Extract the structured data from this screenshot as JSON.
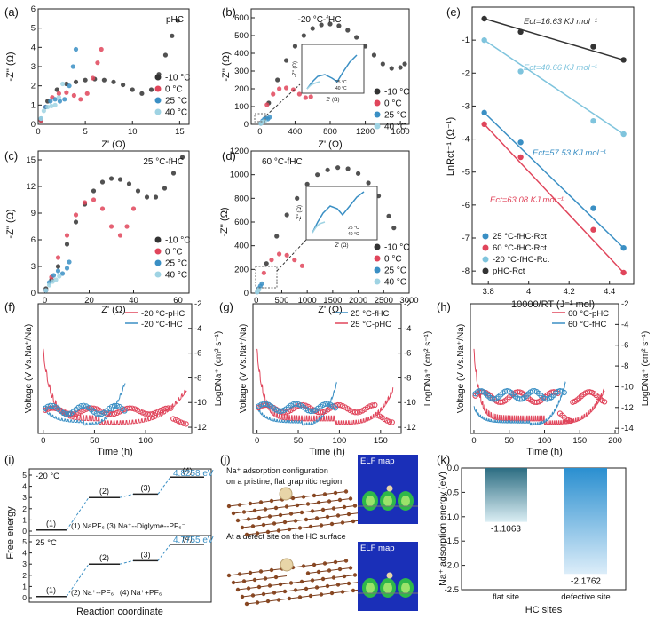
{
  "colors": {
    "black": "#333333",
    "red": "#e0455b",
    "blue": "#3a8fc4",
    "lightblue": "#9fd3e3",
    "cyan": "#7fc4dd",
    "pink": "#e86b82"
  },
  "panels": {
    "a": {
      "letter": "(a)",
      "tag": "pHC",
      "xlabel": "Z' (Ω)",
      "ylabel": "-Z'' (Ω)"
    },
    "b": {
      "letter": "(b)",
      "tag": "-20 °C-fHC",
      "xlabel": "Z' (Ω)",
      "ylabel": "-Z'' (Ω)",
      "inset_xlabel": "Z' (Ω)",
      "inset_ylabel": "-Z'' (Ω)"
    },
    "c": {
      "letter": "(c)",
      "tag": "25 °C-fHC",
      "xlabel": "Z' (Ω)",
      "ylabel": "-Z'' (Ω)"
    },
    "d": {
      "letter": "(d)",
      "tag": "60 °C-fHC",
      "xlabel": "Z' (Ω)",
      "ylabel": "-Z'' (Ω)",
      "inset_xlabel": "Z' (Ω)",
      "inset_ylabel": "-Z'' (Ω)"
    },
    "e": {
      "letter": "(e)",
      "xlabel": "10000/RT (J⁻¹ mol)",
      "ylabel": "LnRct⁻¹ (Ω⁻¹)"
    },
    "f": {
      "letter": "(f)",
      "xlabel": "Time (h)",
      "ylabel": "Voltage (V Vs.Na⁺/Na)",
      "y2label": "LogDNa⁺ (cm² s⁻¹)"
    },
    "g": {
      "letter": "(g)",
      "xlabel": "Time (h)",
      "ylabel": "Voltage (V Vs.Na⁺/Na)",
      "y2label": "LogDNa⁺ (cm² s⁻¹)"
    },
    "h": {
      "letter": "(h)",
      "xlabel": "Time (h)",
      "ylabel": "Voltage (V Vs.Na⁺/Na)",
      "y2label": "LogDNa⁺ (cm² s⁻¹)"
    },
    "i": {
      "letter": "(i)"
    },
    "j": {
      "letter": "(j)"
    },
    "k": {
      "letter": "(k)"
    }
  },
  "legend_temps": [
    "-10 °C",
    "0 °C",
    "25 °C",
    "40 °C"
  ],
  "chart_data": [
    {
      "panel": "a",
      "type": "scatter",
      "xlim": [
        0,
        16
      ],
      "ylim": [
        0,
        6
      ],
      "xticks": [
        0,
        5,
        10,
        15
      ],
      "yticks": [
        0,
        1,
        2,
        3,
        4,
        5,
        6
      ],
      "series": [
        {
          "name": "-10 °C",
          "color": "#333333",
          "x": [
            0.3,
            1,
            2,
            3,
            4,
            5,
            6,
            7,
            8,
            9,
            10,
            11,
            12,
            12.8,
            13.5,
            14.2,
            14.8
          ],
          "y": [
            0.2,
            1.2,
            1.8,
            2.1,
            2.2,
            2.3,
            2.35,
            2.3,
            2.2,
            2.05,
            1.8,
            1.6,
            1.8,
            2.6,
            3.6,
            4.6,
            5.4
          ]
        },
        {
          "name": "0 °C",
          "color": "#e0455b",
          "x": [
            0.3,
            0.8,
            1.5,
            2.2,
            3,
            3.8,
            4.5,
            5.2,
            5.8,
            6.3,
            6.7
          ],
          "y": [
            0.2,
            0.9,
            1.4,
            1.6,
            1.65,
            1.5,
            1.3,
            1.6,
            2.4,
            3.2,
            3.9
          ]
        },
        {
          "name": "25 °C",
          "color": "#3a8fc4",
          "x": [
            0.3,
            0.8,
            1.3,
            1.8,
            2.3,
            2.8,
            3.3,
            3.7,
            4.0
          ],
          "y": [
            0.3,
            0.9,
            1.2,
            1.3,
            1.2,
            1.3,
            2.0,
            3.0,
            3.9
          ]
        },
        {
          "name": "40 °C",
          "color": "#9fd3e3",
          "x": [
            0.3,
            0.6,
            1,
            1.4,
            1.8,
            2.2,
            2.6
          ],
          "y": [
            0.3,
            0.7,
            0.9,
            0.95,
            1.0,
            1.4,
            2.1
          ]
        }
      ]
    },
    {
      "panel": "b",
      "type": "scatter",
      "xlim": [
        -100,
        1700
      ],
      "ylim": [
        0,
        650
      ],
      "xticks": [
        0,
        400,
        800,
        1200,
        1600
      ],
      "yticks": [
        0,
        100,
        200,
        300,
        400,
        500,
        600
      ],
      "series": [
        {
          "name": "-10 °C",
          "color": "#333333",
          "x": [
            20,
            100,
            200,
            300,
            400,
            500,
            600,
            700,
            800,
            900,
            1000,
            1100,
            1200,
            1300,
            1400,
            1500,
            1600,
            1650
          ],
          "y": [
            10,
            120,
            250,
            360,
            440,
            500,
            540,
            560,
            565,
            555,
            530,
            490,
            440,
            390,
            340,
            315,
            320,
            340
          ]
        },
        {
          "name": "0 °C",
          "color": "#e0455b",
          "x": [
            20,
            80,
            150,
            220,
            300,
            380,
            450,
            520,
            580,
            620
          ],
          "y": [
            10,
            110,
            170,
            200,
            205,
            195,
            170,
            150,
            155,
            190
          ]
        },
        {
          "name": "25 °C",
          "color": "#3a8fc4",
          "x": [
            10,
            30,
            50,
            70,
            90,
            110
          ],
          "y": [
            5,
            20,
            30,
            35,
            30,
            40
          ]
        },
        {
          "name": "40 °C",
          "color": "#9fd3e3",
          "x": [
            10,
            25,
            40,
            55
          ],
          "y": [
            5,
            12,
            15,
            18
          ]
        }
      ]
    },
    {
      "panel": "c",
      "type": "scatter",
      "xlim": [
        -3,
        65
      ],
      "ylim": [
        0,
        16
      ],
      "xticks": [
        0,
        20,
        40,
        60
      ],
      "yticks": [
        0,
        3,
        6,
        9,
        12,
        15
      ],
      "series": [
        {
          "name": "-10 °C",
          "color": "#333333",
          "x": [
            0.5,
            3,
            6,
            10,
            14,
            18,
            22,
            26,
            30,
            34,
            38,
            42,
            46,
            50,
            54,
            58,
            62
          ],
          "y": [
            0.5,
            1.5,
            3,
            5.5,
            8,
            10,
            11.5,
            12.5,
            12.9,
            12.8,
            12.3,
            11.5,
            10.8,
            10.8,
            11.8,
            13.5,
            15.3
          ]
        },
        {
          "name": "0 °C",
          "color": "#e0455b",
          "x": [
            0.5,
            3,
            6,
            10,
            14,
            18,
            22,
            26,
            30,
            34,
            37,
            40
          ],
          "y": [
            0.3,
            1.8,
            4,
            6.5,
            8.8,
            10.2,
            10.5,
            9.5,
            7.5,
            6.5,
            7.5,
            9.5
          ]
        },
        {
          "name": "25 °C",
          "color": "#3a8fc4",
          "x": [
            0.5,
            2,
            4,
            6,
            8,
            10,
            11
          ],
          "y": [
            0.3,
            1.2,
            2,
            2.5,
            2.2,
            2.8,
            3.5
          ]
        },
        {
          "name": "40 °C",
          "color": "#9fd3e3",
          "x": [
            0.5,
            2,
            3.5,
            5,
            6.5
          ],
          "y": [
            0.3,
            0.9,
            1.3,
            1.5,
            1.9
          ]
        }
      ]
    },
    {
      "panel": "d",
      "type": "scatter",
      "xlim": [
        -100,
        3000
      ],
      "ylim": [
        0,
        1200
      ],
      "xticks": [
        0,
        500,
        1000,
        1500,
        2000,
        2500,
        3000
      ],
      "yticks": [
        0,
        200,
        400,
        600,
        800,
        1000,
        1200
      ],
      "series": [
        {
          "name": "-10 °C",
          "color": "#333333",
          "x": [
            30,
            200,
            400,
            600,
            800,
            1000,
            1200,
            1400,
            1600,
            1800,
            2000,
            2200,
            2400,
            2600,
            2700
          ],
          "y": [
            20,
            250,
            480,
            660,
            800,
            920,
            1000,
            1040,
            1060,
            1050,
            1010,
            930,
            820,
            650,
            550
          ]
        },
        {
          "name": "0 °C",
          "color": "#e0455b",
          "x": [
            30,
            150,
            300,
            450,
            600,
            750,
            900
          ],
          "y": [
            20,
            170,
            280,
            330,
            320,
            280,
            230
          ]
        },
        {
          "name": "25 °C",
          "color": "#3a8fc4",
          "x": [
            20,
            50,
            80,
            110
          ],
          "y": [
            10,
            40,
            60,
            80
          ]
        },
        {
          "name": "40 °C",
          "color": "#9fd3e3",
          "x": [
            15,
            35,
            55
          ],
          "y": [
            8,
            20,
            30
          ]
        }
      ]
    },
    {
      "panel": "e",
      "type": "scatter",
      "xlim": [
        3.72,
        4.52
      ],
      "ylim": [
        -8.4,
        0
      ],
      "xticks": [
        3.8,
        4.0,
        4.2,
        4.4
      ],
      "yticks": [
        -8,
        -7,
        -6,
        -5,
        -4,
        -3,
        -2,
        -1
      ],
      "x": [
        3.78,
        3.96,
        4.32,
        4.47
      ],
      "series": [
        {
          "name": "pHC-Rct",
          "color": "#333333",
          "y": [
            -0.35,
            -0.75,
            -1.2,
            -1.6
          ],
          "annotation": "Ect=16.63 KJ mol⁻¹"
        },
        {
          "name": "-20 °C-fHC-Rct",
          "color": "#7fc4dd",
          "y": [
            -1.0,
            -1.95,
            -3.45,
            -3.85
          ],
          "annotation": "Ect=40.66 KJ mol⁻¹"
        },
        {
          "name": "25 °C-fHC-Rct",
          "color": "#3a8fc4",
          "y": [
            -3.2,
            -4.1,
            -6.1,
            -7.3
          ],
          "annotation": "Ect=57.53 KJ mol⁻¹"
        },
        {
          "name": "60 °C-fHC-Rct",
          "color": "#e0455b",
          "y": [
            -3.55,
            -4.55,
            -6.75,
            -8.05
          ],
          "annotation": "Ect=63.08 KJ mol⁻¹"
        }
      ]
    },
    {
      "panel": "f",
      "type": "line",
      "xlim": [
        -5,
        145
      ],
      "ylim_left": [
        -0.1,
        3.0
      ],
      "ylim_right": [
        -12.5,
        -2
      ],
      "xticks": [
        0,
        50,
        100
      ],
      "yticks_right": [
        -2,
        -4,
        -6,
        -8,
        -10,
        -12
      ],
      "series": [
        {
          "name": "-20 °C-pHC",
          "color": "#e0455b"
        },
        {
          "name": "-20 °C-fHC",
          "color": "#3a8fc4"
        }
      ]
    },
    {
      "panel": "g",
      "type": "line",
      "xlim": [
        -5,
        175
      ],
      "ylim_left": [
        -0.1,
        3.0
      ],
      "ylim_right": [
        -12.5,
        -2
      ],
      "xticks": [
        0,
        50,
        100,
        150
      ],
      "yticks_right": [
        -2,
        -4,
        -6,
        -8,
        -10,
        -12
      ],
      "series": [
        {
          "name": "25 °C-fHC",
          "color": "#3a8fc4"
        },
        {
          "name": "25 °C-pHC",
          "color": "#e0455b"
        }
      ]
    },
    {
      "panel": "h",
      "type": "line",
      "xlim": [
        -5,
        205
      ],
      "ylim_left": [
        -0.1,
        3.0
      ],
      "ylim_right": [
        -14.5,
        -2
      ],
      "xticks": [
        0,
        50,
        100,
        150,
        200
      ],
      "yticks_right": [
        -2,
        -4,
        -6,
        -8,
        -10,
        -12,
        -14
      ],
      "series": [
        {
          "name": "60 °C-pHC",
          "color": "#e0455b"
        },
        {
          "name": "60 °C-fHC",
          "color": "#3a8fc4"
        }
      ]
    },
    {
      "panel": "i",
      "type": "line",
      "ylabel": "Free energy",
      "xlabel": "Reaction coordinate",
      "top": {
        "temp": "-20 °C",
        "final": "4.8258 eV",
        "steps": [
          "(1)",
          "(2)",
          "(3)",
          "(4)"
        ],
        "caption_a": "(1) NaPF₆ (3) Na⁺--Diglyme--PF₆⁻"
      },
      "bottom": {
        "temp": "25 °C",
        "final": "4.7755 eV",
        "steps": [
          "(1)",
          "(2)",
          "(3)",
          "(4)"
        ],
        "caption_b": "(2) Na⁺--PF₆⁻ (4) Na⁺+PF₆⁻"
      },
      "yticks_top": [
        0,
        1,
        2,
        3,
        4,
        5
      ],
      "yticks_bottom": [
        0,
        1,
        2,
        3,
        4,
        5
      ]
    },
    {
      "panel": "k",
      "type": "bar",
      "ylabel": "Na⁺ adsorption energy (eV)",
      "xlabel": "HC sites",
      "categories": [
        "flat site",
        "defective site"
      ],
      "values": [
        -1.1063,
        -2.1762
      ],
      "value_labels": [
        "-1.1063",
        "-2.1762"
      ],
      "ylim": [
        -2.5,
        0.0
      ],
      "yticks": [
        "0.0",
        "-0.5",
        "-1.0",
        "-1.5",
        "-2.0",
        "-2.5"
      ]
    }
  ],
  "j_texts": {
    "top_caption_1": "Na⁺ adsorption configuration",
    "top_caption_2": "on a pristine, flat graphitic region",
    "bottom_caption": "At a defect site on the HC surface",
    "elf_label": "ELF map"
  }
}
